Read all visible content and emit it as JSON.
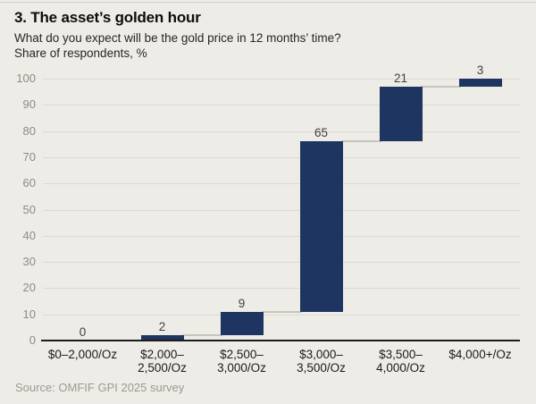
{
  "header": {
    "title": "3. The asset’s golden hour",
    "subtitle_line1": "What do you expect will be the gold price in 12 months’ time?",
    "subtitle_line2": "Share of respondents, %"
  },
  "chart_data": {
    "type": "bar",
    "subtype": "waterfall",
    "title": "3. The asset’s golden hour",
    "question": "What do you expect will be the gold price in 12 months’ time?",
    "ylabel": "Share of respondents, %",
    "xlabel": "",
    "categories": [
      "$0–2,000/Oz",
      "$2,000–2,500/Oz",
      "$2,500–3,000/Oz",
      "$3,000–3,500/Oz",
      "$3,500–4,000/Oz",
      "$4,000+/Oz"
    ],
    "category_label_lines": [
      [
        "$0–2,000/Oz"
      ],
      [
        "$2,000–",
        "2,500/Oz"
      ],
      [
        "$2,500–",
        "3,000/Oz"
      ],
      [
        "$3,000–",
        "3,500/Oz"
      ],
      [
        "$3,500–",
        "4,000/Oz"
      ],
      [
        "$4,000+/Oz"
      ]
    ],
    "values": [
      0,
      2,
      9,
      65,
      21,
      3
    ],
    "cumulative": [
      0,
      2,
      11,
      76,
      97,
      100
    ],
    "ylim": [
      0,
      100
    ],
    "ytick_step": 10,
    "grid": true,
    "legend": "none",
    "colors": {
      "bar": "#1f3561",
      "background": "#eeece7",
      "gridline": "#dcd9d3",
      "connector": "#c7c4be",
      "axis": "#1c1c1c",
      "value_label": "#404040",
      "ytick_label": "#8f8b84",
      "xtick_label": "#1b1b1b"
    }
  },
  "footer": {
    "source": "Source: OMFIF GPI 2025 survey"
  }
}
